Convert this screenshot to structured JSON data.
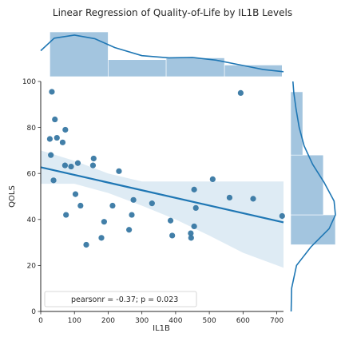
{
  "chart_data": {
    "type": "scatter",
    "title": "Linear Regression of Quality-of-Life by IL1B Levels",
    "xlabel": "IL1B",
    "ylabel": "QOLS",
    "xlim": [
      0,
      720
    ],
    "ylim": [
      0,
      100
    ],
    "xticks": [
      0,
      100,
      200,
      300,
      400,
      500,
      600,
      700
    ],
    "yticks": [
      0,
      20,
      40,
      60,
      80,
      100
    ],
    "points": [
      {
        "x": 33,
        "y": 95.5
      },
      {
        "x": 42,
        "y": 83.5
      },
      {
        "x": 48,
        "y": 75.5
      },
      {
        "x": 27,
        "y": 75
      },
      {
        "x": 73,
        "y": 79
      },
      {
        "x": 65,
        "y": 73.5
      },
      {
        "x": 30,
        "y": 68
      },
      {
        "x": 72,
        "y": 63.5
      },
      {
        "x": 90,
        "y": 63
      },
      {
        "x": 110,
        "y": 64.5
      },
      {
        "x": 157,
        "y": 66.5
      },
      {
        "x": 155,
        "y": 63.5
      },
      {
        "x": 38,
        "y": 57
      },
      {
        "x": 232,
        "y": 61
      },
      {
        "x": 103,
        "y": 51
      },
      {
        "x": 118,
        "y": 46
      },
      {
        "x": 75,
        "y": 42
      },
      {
        "x": 213,
        "y": 46
      },
      {
        "x": 188,
        "y": 39
      },
      {
        "x": 180,
        "y": 32
      },
      {
        "x": 135,
        "y": 29
      },
      {
        "x": 262,
        "y": 35.5
      },
      {
        "x": 275,
        "y": 48.5
      },
      {
        "x": 270,
        "y": 42
      },
      {
        "x": 330,
        "y": 47
      },
      {
        "x": 385,
        "y": 39.5
      },
      {
        "x": 390,
        "y": 33
      },
      {
        "x": 445,
        "y": 34
      },
      {
        "x": 446,
        "y": 32
      },
      {
        "x": 455,
        "y": 37
      },
      {
        "x": 455,
        "y": 53
      },
      {
        "x": 460,
        "y": 45
      },
      {
        "x": 510,
        "y": 57.5
      },
      {
        "x": 560,
        "y": 49.5
      },
      {
        "x": 593,
        "y": 95
      },
      {
        "x": 630,
        "y": 49
      },
      {
        "x": 716,
        "y": 41.5
      }
    ],
    "regression": {
      "intercept": 62.7,
      "slope": -0.0333
    },
    "ci_band": [
      {
        "x": 0,
        "lo": 55.5,
        "hi": 70
      },
      {
        "x": 100,
        "lo": 55.5,
        "hi": 65.5
      },
      {
        "x": 200,
        "lo": 51.5,
        "hi": 60
      },
      {
        "x": 300,
        "lo": 46,
        "hi": 56.5
      },
      {
        "x": 400,
        "lo": 40,
        "hi": 56.5
      },
      {
        "x": 500,
        "lo": 33,
        "hi": 56.5
      },
      {
        "x": 600,
        "lo": 25.5,
        "hi": 56.5
      },
      {
        "x": 720,
        "lo": 19,
        "hi": 56.5
      }
    ],
    "marginal_x": {
      "bins": [
        {
          "from": 27,
          "to": 200,
          "density": 1.0
        },
        {
          "from": 200,
          "to": 372,
          "density": 0.38
        },
        {
          "from": 372,
          "to": 545,
          "density": 0.42
        },
        {
          "from": 545,
          "to": 716,
          "density": 0.26
        }
      ],
      "kde": [
        [
          0,
          0.58
        ],
        [
          40,
          0.86
        ],
        [
          100,
          0.93
        ],
        [
          160,
          0.85
        ],
        [
          220,
          0.65
        ],
        [
          300,
          0.47
        ],
        [
          380,
          0.42
        ],
        [
          450,
          0.43
        ],
        [
          520,
          0.37
        ],
        [
          600,
          0.25
        ],
        [
          660,
          0.16
        ],
        [
          720,
          0.11
        ]
      ]
    },
    "marginal_y": {
      "bins": [
        {
          "from": 29,
          "to": 42,
          "density": 1.0
        },
        {
          "from": 42,
          "to": 68,
          "density": 0.73
        },
        {
          "from": 68,
          "to": 95.5,
          "density": 0.27
        }
      ],
      "kde": [
        [
          0,
          0.01
        ],
        [
          10,
          0.02
        ],
        [
          20,
          0.13
        ],
        [
          28,
          0.45
        ],
        [
          36,
          0.86
        ],
        [
          42,
          1.0
        ],
        [
          48,
          0.97
        ],
        [
          56,
          0.75
        ],
        [
          64,
          0.49
        ],
        [
          72,
          0.3
        ],
        [
          80,
          0.19
        ],
        [
          88,
          0.12
        ],
        [
          95,
          0.07
        ],
        [
          100,
          0.05
        ]
      ]
    },
    "legend": {
      "text": "pearsonr = -0.37; p = 0.023",
      "position": "lower-left"
    },
    "grid": false,
    "colors": {
      "points": "#3274a1",
      "line": "#1f77b4",
      "band": "#1f77b4",
      "hist": "#9ec2dd"
    }
  }
}
